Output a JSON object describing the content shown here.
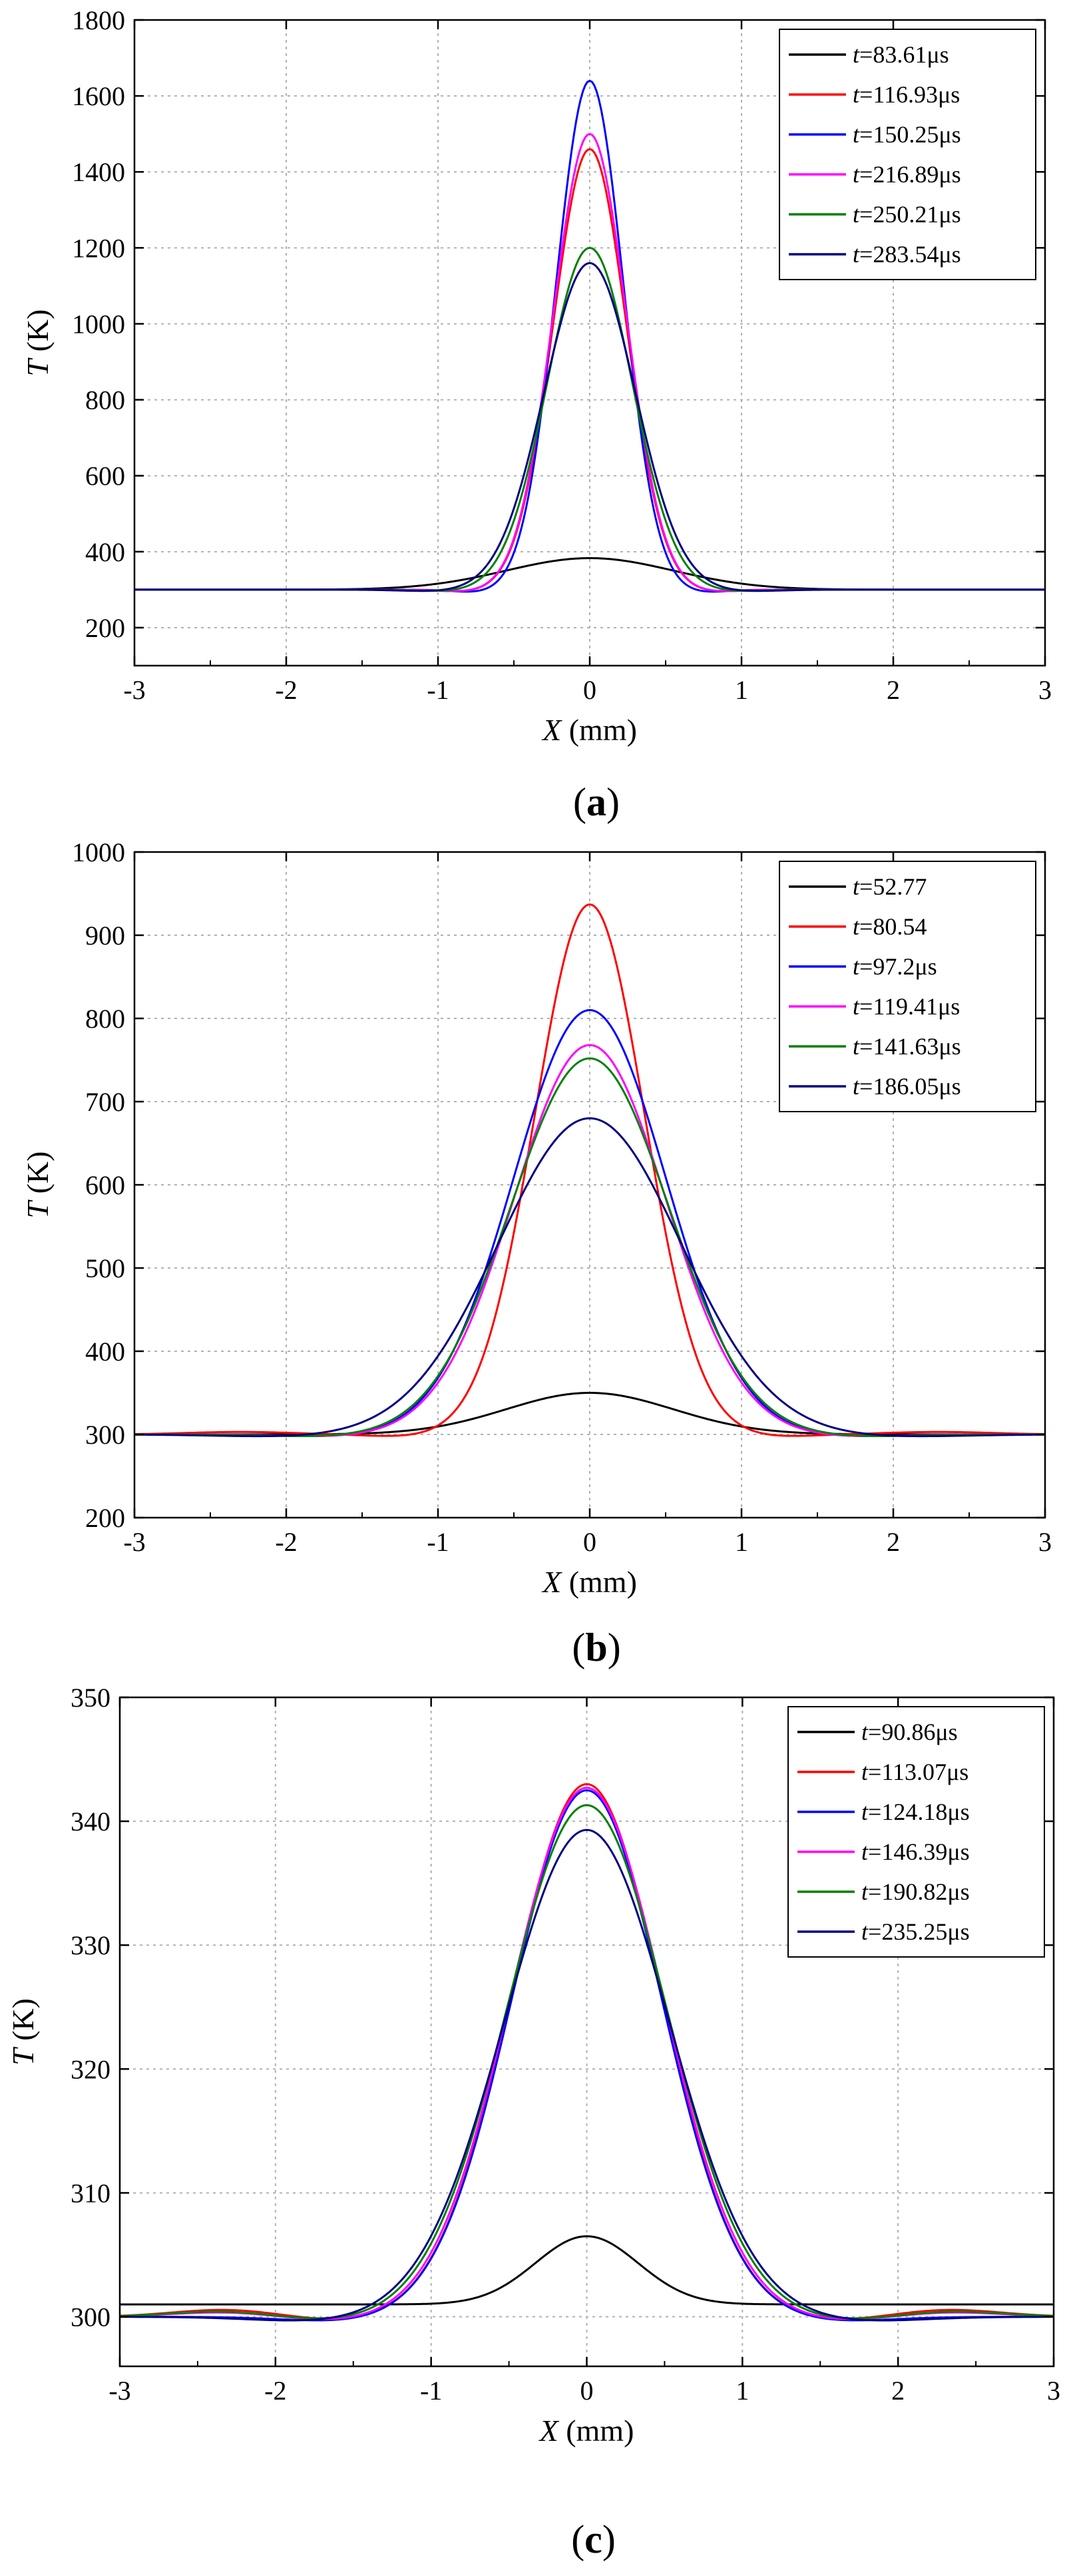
{
  "chart_data": [
    {
      "panel": "a",
      "caption": "(a)",
      "type": "line",
      "title": "",
      "xlabel": "X (mm)",
      "ylabel": "T (K)",
      "xlim": [
        -3,
        3
      ],
      "ylim": [
        100,
        1800
      ],
      "xticks": [
        -3,
        -2,
        -1,
        0,
        1,
        2,
        3
      ],
      "yticks": [
        200,
        400,
        600,
        800,
        1000,
        1200,
        1400,
        1600,
        1800
      ],
      "grid": true,
      "legend_position": "top-right",
      "series": [
        {
          "name": "t=83.61μs",
          "color": "#000000",
          "base": 300,
          "peak": 383,
          "width": 0.55,
          "dip": 0,
          "side": 0
        },
        {
          "name": "t=116.93μs",
          "color": "#ff0000",
          "base": 300,
          "peak": 1460,
          "width": 0.24,
          "dip": 6,
          "side": 0
        },
        {
          "name": "t=150.25μs",
          "color": "#0000ff",
          "base": 300,
          "peak": 1640,
          "width": 0.22,
          "dip": 8,
          "side": 0
        },
        {
          "name": "t=216.89μs",
          "color": "#ff00ff",
          "base": 300,
          "peak": 1500,
          "width": 0.24,
          "dip": 6,
          "side": 0
        },
        {
          "name": "t=250.21μs",
          "color": "#008000",
          "base": 300,
          "peak": 1200,
          "width": 0.28,
          "dip": 5,
          "side": 0
        },
        {
          "name": "t=283.54μs",
          "color": "#000080",
          "base": 300,
          "peak": 1160,
          "width": 0.3,
          "dip": 5,
          "side": 0
        }
      ]
    },
    {
      "panel": "b",
      "caption": "(b)",
      "type": "line",
      "title": "",
      "xlabel": "X (mm)",
      "ylabel": "T (K)",
      "xlim": [
        -3,
        3
      ],
      "ylim": [
        200,
        1000
      ],
      "xticks": [
        -3,
        -2,
        -1,
        0,
        1,
        2,
        3
      ],
      "yticks": [
        200,
        300,
        400,
        500,
        600,
        700,
        800,
        900,
        1000
      ],
      "grid": true,
      "legend_position": "top-right",
      "series": [
        {
          "name": "t=52.77",
          "color": "#000000",
          "base": 300,
          "peak": 350,
          "width": 0.55,
          "dip": 0,
          "side": 0
        },
        {
          "name": "t=80.54",
          "color": "#ff0000",
          "base": 300,
          "peak": 937,
          "width": 0.36,
          "dip": 3,
          "side": 3
        },
        {
          "name": "t=97.2μs",
          "color": "#0000ff",
          "base": 300,
          "peak": 810,
          "width": 0.5,
          "dip": 3,
          "side": 0
        },
        {
          "name": "t=119.41μs",
          "color": "#ff00ff",
          "base": 300,
          "peak": 768,
          "width": 0.5,
          "dip": 3,
          "side": 0
        },
        {
          "name": "t=141.63μs",
          "color": "#008000",
          "base": 300,
          "peak": 752,
          "width": 0.52,
          "dip": 3,
          "side": 0
        },
        {
          "name": "t=186.05μs",
          "color": "#000080",
          "base": 300,
          "peak": 680,
          "width": 0.6,
          "dip": 3,
          "side": 0
        }
      ]
    },
    {
      "panel": "c",
      "caption": "(c)",
      "type": "line",
      "title": "",
      "xlabel": "X (mm)",
      "ylabel": "T (K)",
      "xlim": [
        -3,
        3
      ],
      "ylim": [
        296,
        350
      ],
      "xticks": [
        -3,
        -2,
        -1,
        0,
        1,
        2,
        3
      ],
      "yticks": [
        300,
        310,
        320,
        330,
        340,
        350
      ],
      "grid": true,
      "legend_position": "top-right",
      "series": [
        {
          "name": "t=90.86μs",
          "color": "#000000",
          "base": 301,
          "peak": 306.5,
          "width": 0.33,
          "dip": 0,
          "side": 0
        },
        {
          "name": "t=113.07μs",
          "color": "#ff0000",
          "base": 300,
          "peak": 343,
          "width": 0.48,
          "dip": 0.4,
          "side": 0.6
        },
        {
          "name": "t=124.18μs",
          "color": "#0000ff",
          "base": 300,
          "peak": 342.5,
          "width": 0.48,
          "dip": 0.4,
          "side": 0
        },
        {
          "name": "t=146.39μs",
          "color": "#ff00ff",
          "base": 300,
          "peak": 342.7,
          "width": 0.49,
          "dip": 0.4,
          "side": 0.4
        },
        {
          "name": "t=190.82μs",
          "color": "#008000",
          "base": 300,
          "peak": 341.3,
          "width": 0.51,
          "dip": 0.4,
          "side": 0.5
        },
        {
          "name": "t=235.25μs",
          "color": "#000080",
          "base": 300,
          "peak": 339.3,
          "width": 0.53,
          "dip": 0.4,
          "side": 0
        }
      ]
    }
  ]
}
